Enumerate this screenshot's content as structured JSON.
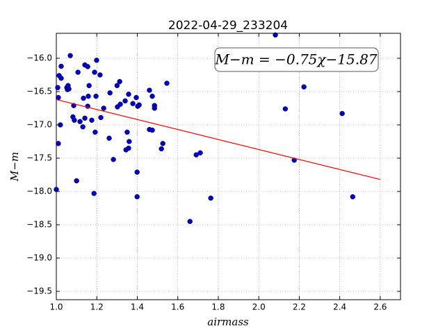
{
  "chart_data": {
    "type": "scatter",
    "title": "2022-04-29_233204",
    "x_label": "airmass",
    "y_label": "M−m",
    "annotation": "M−m = −0.75χ−15.87",
    "xlim": [
      1.0,
      2.7
    ],
    "ylim": [
      -19.625,
      -15.625
    ],
    "xticks": [
      {
        "value": 1.0,
        "label": "1.0"
      },
      {
        "value": 1.2,
        "label": "1.2"
      },
      {
        "value": 1.4,
        "label": "1.4"
      },
      {
        "value": 1.6,
        "label": "1.6"
      },
      {
        "value": 1.8,
        "label": "1.8"
      },
      {
        "value": 2.0,
        "label": "2.0"
      },
      {
        "value": 2.2,
        "label": "2.2"
      },
      {
        "value": 2.4,
        "label": "2.4"
      },
      {
        "value": 2.6,
        "label": "2.6"
      }
    ],
    "yticks": [
      {
        "value": -16.0,
        "label": "−16.0"
      },
      {
        "value": -16.5,
        "label": "−16.5"
      },
      {
        "value": -17.0,
        "label": "−17.0"
      },
      {
        "value": -17.5,
        "label": "−17.5"
      },
      {
        "value": -18.0,
        "label": "−18.0"
      },
      {
        "value": -18.5,
        "label": "−18.5"
      },
      {
        "value": -19.0,
        "label": "−19.0"
      },
      {
        "value": -19.5,
        "label": "−19.5"
      }
    ],
    "grid": true,
    "points": {
      "color": "#0000cc",
      "x": [
        1.0,
        1.007,
        1.01,
        1.01,
        1.014,
        1.02,
        1.024,
        1.024,
        1.052,
        1.055,
        1.058,
        1.062,
        1.069,
        1.082,
        1.086,
        1.089,
        1.1,
        1.107,
        1.117,
        1.131,
        1.134,
        1.141,
        1.141,
        1.155,
        1.155,
        1.158,
        1.162,
        1.175,
        1.186,
        1.189,
        1.192,
        1.196,
        1.199,
        1.216,
        1.22,
        1.234,
        1.261,
        1.265,
        1.282,
        1.3,
        1.302,
        1.313,
        1.316,
        1.34,
        1.344,
        1.35,
        1.357,
        1.357,
        1.36,
        1.378,
        1.395,
        1.399,
        1.399,
        1.402,
        1.409,
        1.46,
        1.46,
        1.474,
        1.474,
        1.485,
        1.485,
        1.519,
        1.526,
        1.546,
        1.66,
        1.691,
        1.711,
        1.763,
        2.082,
        2.131,
        2.175,
        2.223,
        2.412,
        2.464
      ],
      "y": [
        -17.97,
        -16.44,
        -16.59,
        -17.28,
        -16.26,
        -17.0,
        -16.3,
        -16.12,
        -16.44,
        -16.47,
        -16.41,
        -16.46,
        -15.96,
        -16.88,
        -16.71,
        -16.93,
        -17.84,
        -16.21,
        -16.95,
        -17.03,
        -16.6,
        -16.9,
        -16.1,
        -16.125,
        -16.72,
        -16.57,
        -16.41,
        -16.93,
        -18.03,
        -16.21,
        -17.11,
        -16.57,
        -16.03,
        -16.25,
        -16.89,
        -16.75,
        -17.2,
        -16.52,
        -17.52,
        -16.41,
        -16.73,
        -16.35,
        -16.69,
        -16.64,
        -17.375,
        -17.11,
        -17.35,
        -16.54,
        -17.25,
        -16.68,
        -16.59,
        -17.71,
        -18.08,
        -16.72,
        -16.7,
        -16.48,
        -17.07,
        -16.57,
        -17.08,
        -16.71,
        -16.75,
        -17.36,
        -17.28,
        -16.375,
        -18.45,
        -17.45,
        -17.42,
        -18.1,
        -15.65,
        -16.76,
        -17.53,
        -16.43,
        -16.83,
        -18.08
      ]
    },
    "fit": {
      "color": "#ff0000",
      "x": [
        1.0,
        2.6
      ],
      "y": [
        -16.62,
        -17.82
      ]
    }
  }
}
